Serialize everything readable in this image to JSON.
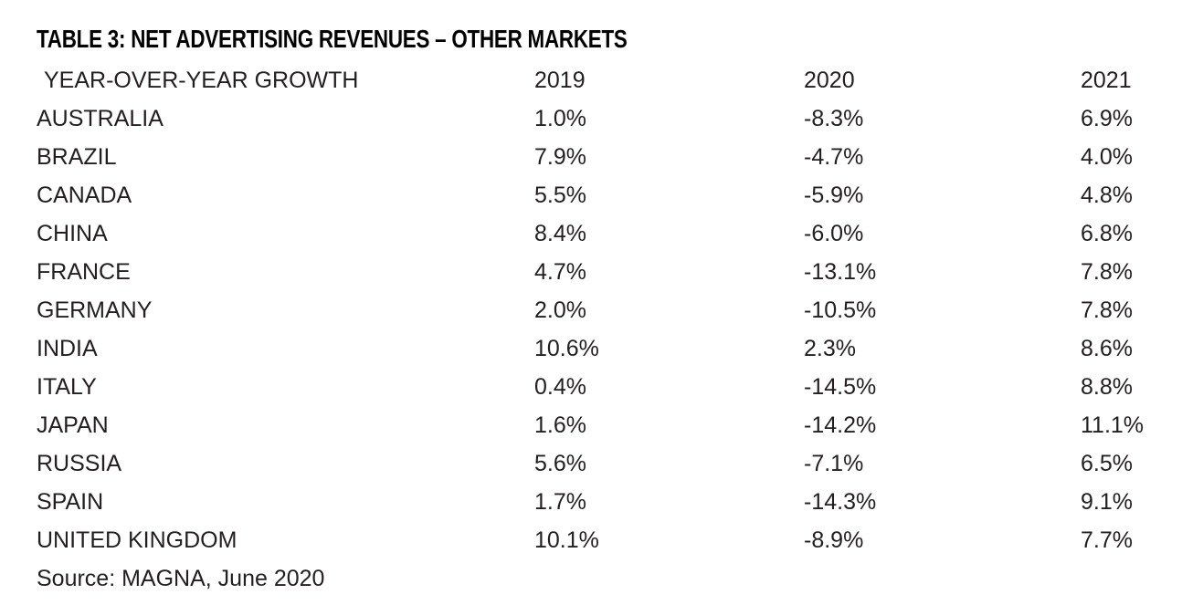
{
  "title": "TABLE 3: NET ADVERTISING REVENUES – OTHER MARKETS",
  "table": {
    "header": {
      "label": "YEAR-OVER-YEAR GROWTH",
      "col_2019": "2019",
      "col_2020": "2020",
      "col_2021": "2021"
    },
    "rows": [
      {
        "country": "AUSTRALIA",
        "y2019": "1.0%",
        "y2020": "-8.3%",
        "y2021": "6.9%"
      },
      {
        "country": "BRAZIL",
        "y2019": "7.9%",
        "y2020": "-4.7%",
        "y2021": "4.0%"
      },
      {
        "country": "CANADA",
        "y2019": "5.5%",
        "y2020": "-5.9%",
        "y2021": "4.8%"
      },
      {
        "country": "CHINA",
        "y2019": "8.4%",
        "y2020": "-6.0%",
        "y2021": "6.8%"
      },
      {
        "country": "FRANCE",
        "y2019": "4.7%",
        "y2020": "-13.1%",
        "y2021": "7.8%"
      },
      {
        "country": "GERMANY",
        "y2019": "2.0%",
        "y2020": "-10.5%",
        "y2021": "7.8%"
      },
      {
        "country": "INDIA",
        "y2019": "10.6%",
        "y2020": "2.3%",
        "y2021": "8.6%"
      },
      {
        "country": "ITALY",
        "y2019": "0.4%",
        "y2020": "-14.5%",
        "y2021": "8.8%"
      },
      {
        "country": "JAPAN",
        "y2019": "1.6%",
        "y2020": "-14.2%",
        "y2021": "11.1%"
      },
      {
        "country": "RUSSIA",
        "y2019": "5.6%",
        "y2020": "-7.1%",
        "y2021": "6.5%"
      },
      {
        "country": "SPAIN",
        "y2019": "1.7%",
        "y2020": "-14.3%",
        "y2021": "9.1%"
      },
      {
        "country": "UNITED KINGDOM",
        "y2019": "10.1%",
        "y2020": "-8.9%",
        "y2021": "7.7%"
      }
    ]
  },
  "source": "Source: MAGNA, June 2020",
  "colors": {
    "title": "#000000",
    "text": "#231f20",
    "background": "#ffffff"
  }
}
